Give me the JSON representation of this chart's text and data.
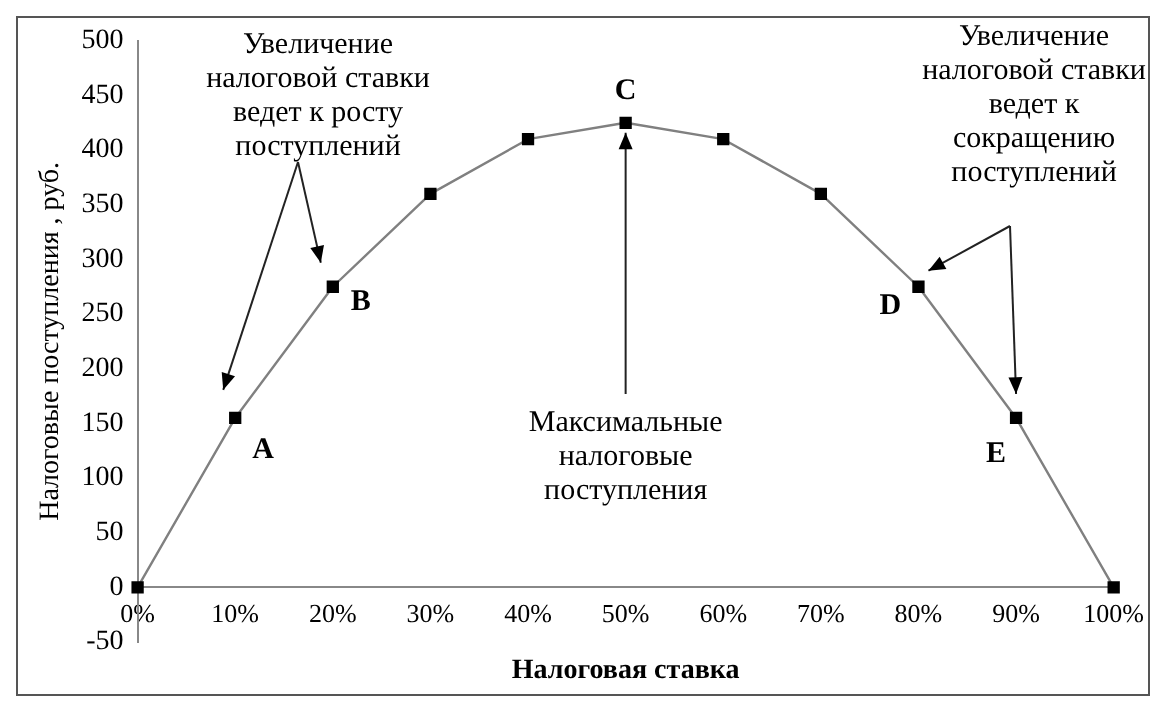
{
  "chart_data": {
    "type": "line",
    "xlabel": "Налоговая ставка",
    "ylabel": "Налоговые поступления , руб.",
    "categories": [
      "0%",
      "10%",
      "20%",
      "30%",
      "40%",
      "50%",
      "60%",
      "70%",
      "80%",
      "90%",
      "100%"
    ],
    "series": [
      {
        "color": "#808080",
        "values": [
          0,
          155,
          275,
          360,
          410,
          425,
          410,
          360,
          275,
          155,
          0
        ]
      }
    ],
    "ylim": [
      -50,
      500
    ],
    "yticks": [
      -50,
      0,
      50,
      100,
      150,
      200,
      250,
      300,
      350,
      400,
      450,
      500
    ],
    "grid": false,
    "legend": false,
    "marker": "square",
    "line_style": "solid",
    "annotations": [
      {
        "text": "A",
        "x": "10%",
        "y": 155
      },
      {
        "text": "B",
        "x": "20%",
        "y": 275
      },
      {
        "text": "C",
        "x": "50%",
        "y": 425
      },
      {
        "text": "D",
        "x": "80%",
        "y": 275
      },
      {
        "text": "E",
        "x": "90%",
        "y": 155
      },
      "Увеличение налоговой ставки ведет к росту поступлений",
      {
        "text": "Максимальные налоговые поступления",
        "x": "50%",
        "y": 425
      },
      "Увеличение налоговой ставки ведет к сокращению поступлений"
    ]
  }
}
